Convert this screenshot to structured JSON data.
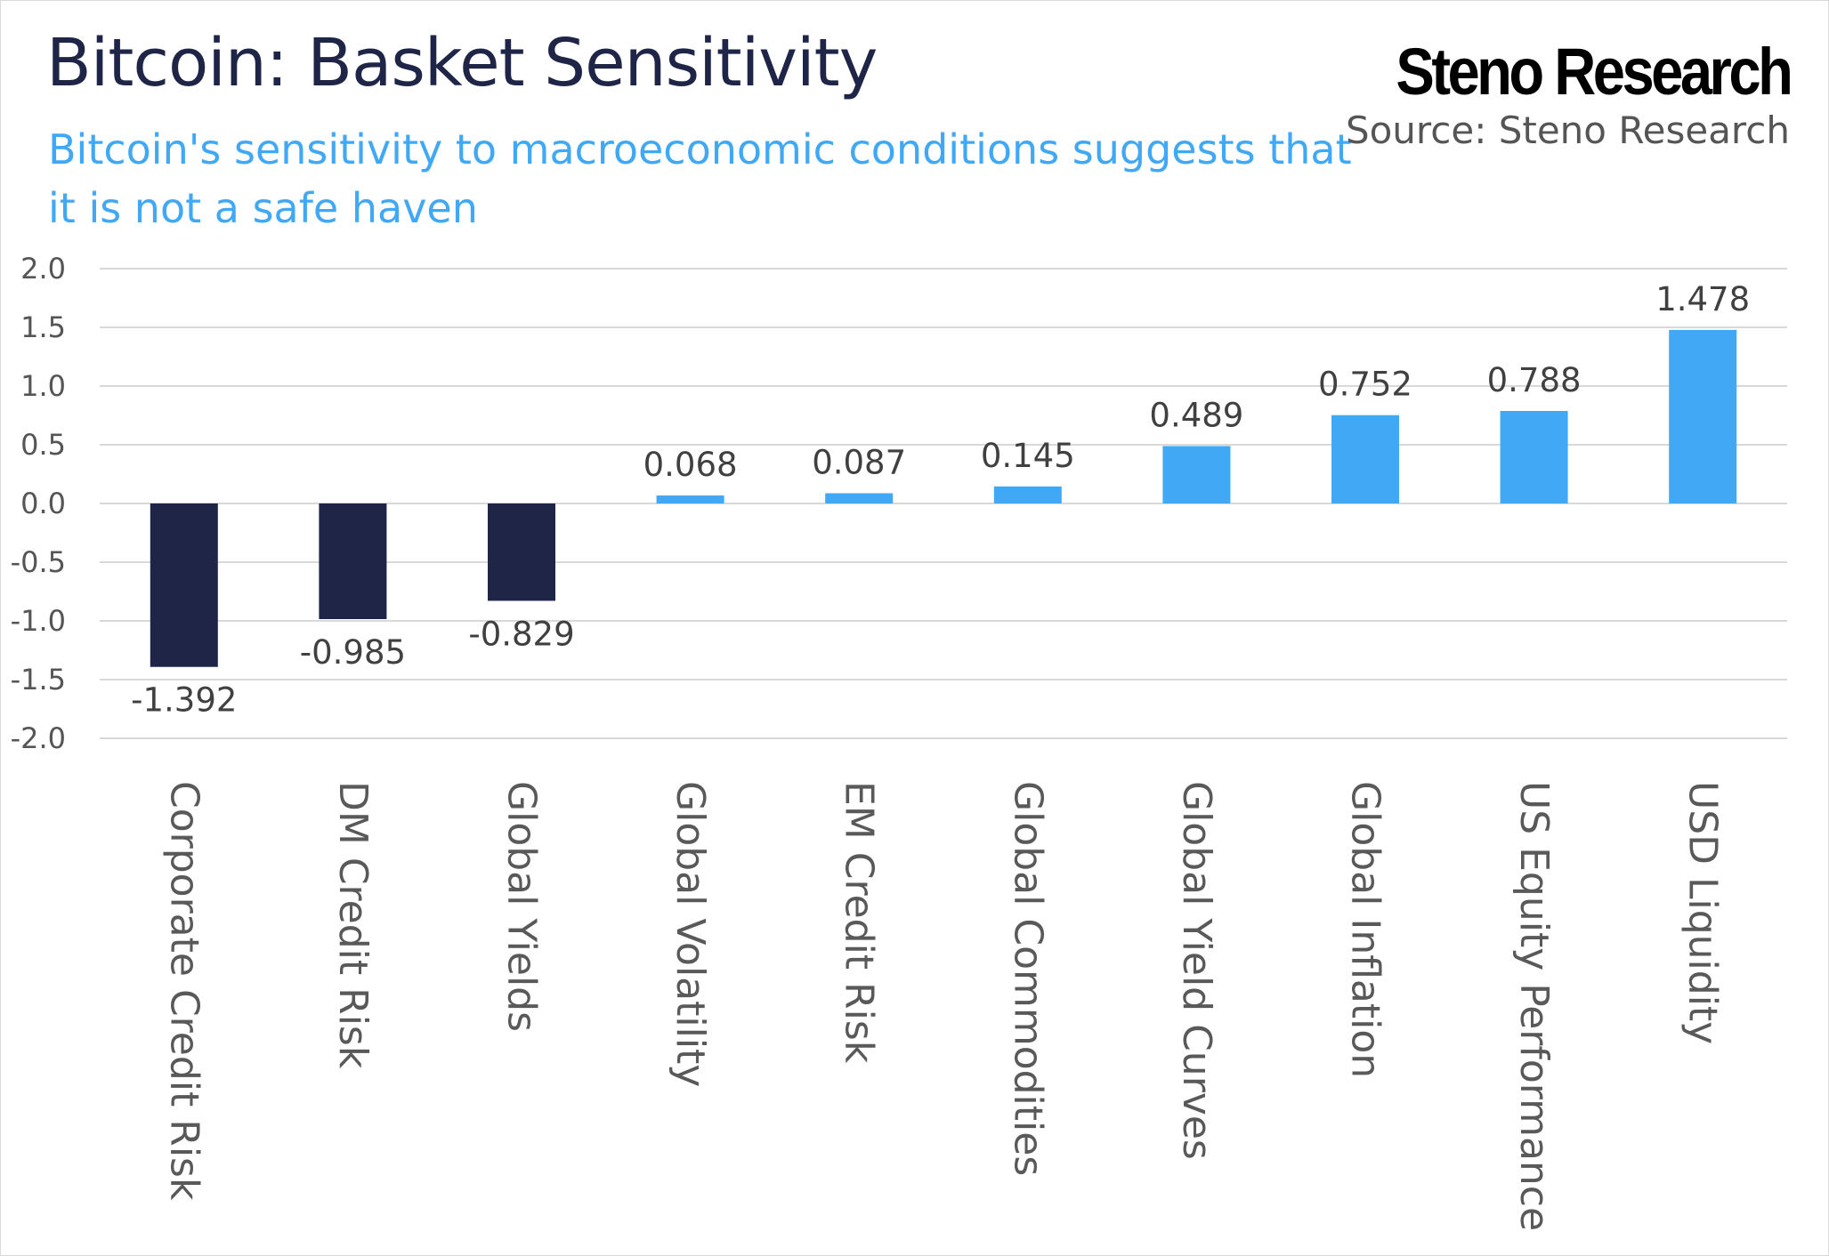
{
  "header": {
    "title": "Bitcoin: Basket Sensitivity",
    "subtitle": "Bitcoin's sensitivity to macroeconomic conditions suggests that it is not a safe haven",
    "brand": "Steno Research",
    "source": "Source: Steno Research"
  },
  "colors": {
    "negative": "#1f2547",
    "positive": "#40a8f5",
    "gridline": "#d9d9d9"
  },
  "chart_data": {
    "type": "bar",
    "title": "Bitcoin: Basket Sensitivity",
    "subtitle": "Bitcoin's sensitivity to macroeconomic conditions suggests that it is not a safe haven",
    "categories": [
      "Corporate Credit Risk",
      "DM Credit Risk",
      "Global Yields",
      "Global Volatility",
      "EM Credit Risk",
      "Global Commodities",
      "Global Yield Curves",
      "Global Inflation",
      "US Equity Performance",
      "USD Liquidity"
    ],
    "values": [
      -1.392,
      -0.985,
      -0.829,
      0.068,
      0.087,
      0.145,
      0.489,
      0.752,
      0.788,
      1.478
    ],
    "data_labels": [
      "-1.392",
      "-0.985",
      "-0.829",
      "0.068",
      "0.087",
      "0.145",
      "0.489",
      "0.752",
      "0.788",
      "1.478"
    ],
    "ylim": [
      -2.0,
      2.0
    ],
    "yticks": [
      2.0,
      1.5,
      1.0,
      0.5,
      0.0,
      -0.5,
      -1.0,
      -1.5,
      -2.0
    ],
    "ytick_labels": [
      "2.0",
      "1.5",
      "1.0",
      "0.5",
      "0.0",
      "-0.5",
      "-1.0",
      "-1.5",
      "-2.0"
    ],
    "xlabel": "",
    "ylabel": "",
    "grid": true,
    "legend": "none"
  }
}
